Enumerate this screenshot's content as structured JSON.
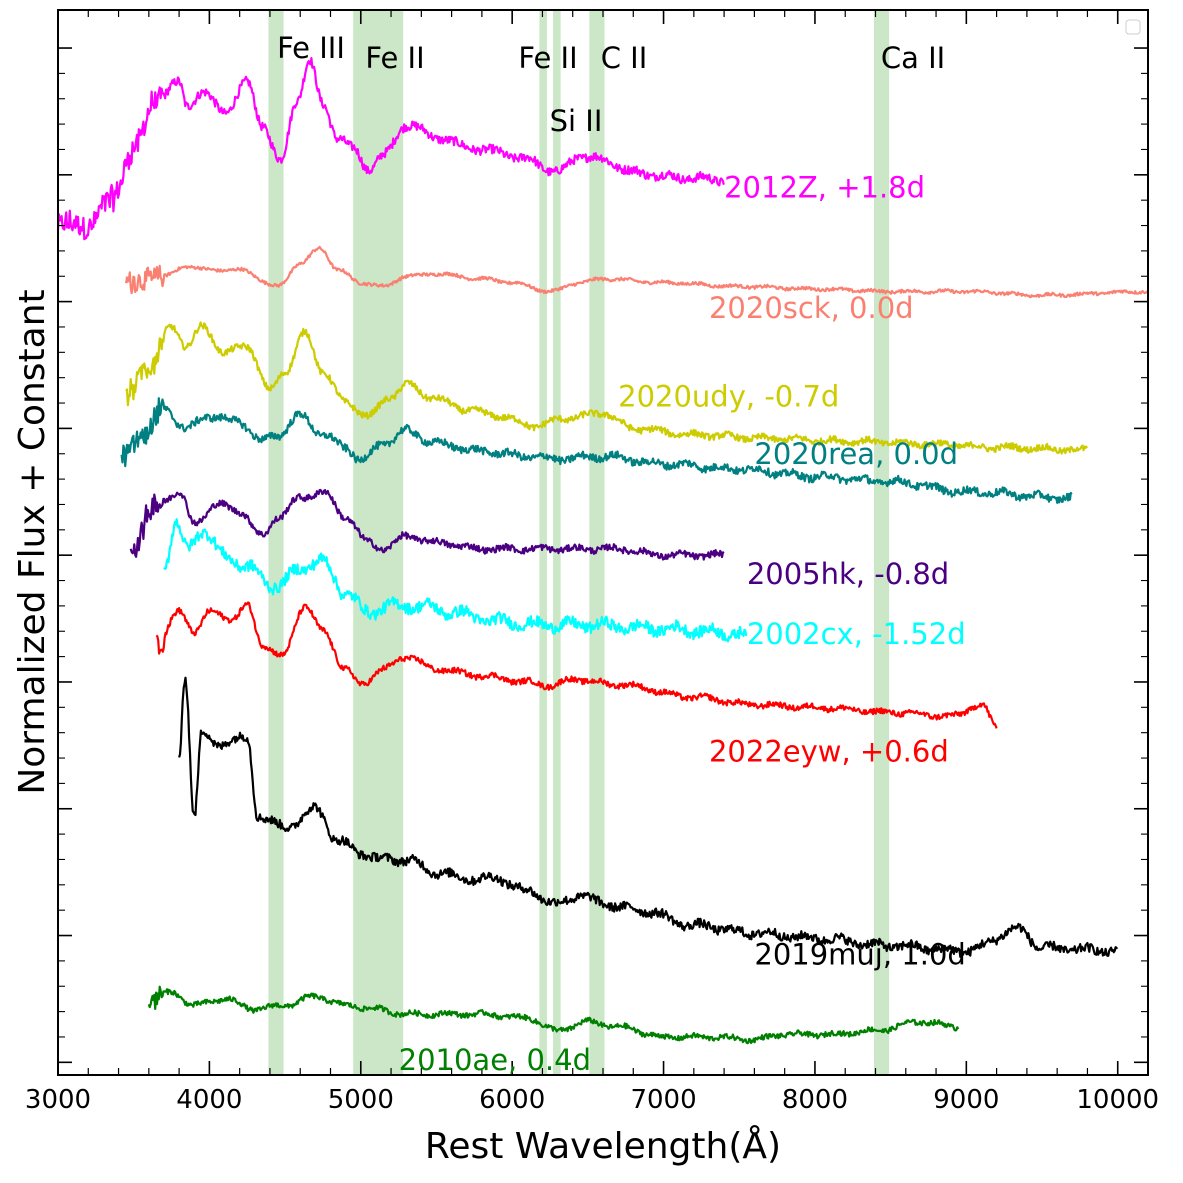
{
  "chart_data": {
    "type": "line",
    "xlabel": "Rest Wavelength(Å)",
    "ylabel": "Normalized Flux + Constant",
    "xlim": [
      3000,
      10200
    ],
    "ylim": [
      -0.1,
      8.3
    ],
    "x_ticks": [
      3000,
      4000,
      5000,
      6000,
      7000,
      8000,
      9000,
      10000
    ],
    "x_tick_labels": [
      "3000",
      "4000",
      "5000",
      "6000",
      "7000",
      "8000",
      "9000",
      "10000"
    ],
    "y_major_ticks": [
      0,
      1,
      2,
      3,
      4,
      5,
      6,
      7,
      8
    ],
    "grid": false,
    "legend": "top-right, empty",
    "line_bands": [
      {
        "label": "Fe III",
        "x": [
          4390,
          4490
        ]
      },
      {
        "label": "Fe II",
        "x": [
          4950,
          5280
        ]
      },
      {
        "label": "Fe II",
        "x": [
          6180,
          6230
        ]
      },
      {
        "label": "Si II",
        "x": [
          6270,
          6320
        ]
      },
      {
        "label": "C II",
        "x": [
          6510,
          6610
        ]
      },
      {
        "label": "Ca II",
        "x": [
          8390,
          8490
        ]
      }
    ],
    "band_color": "#b9dfb4",
    "series": [
      {
        "name": "2012Z, +1.8d",
        "color": "#ff00ff",
        "label_at": [
          7400,
          6.9
        ],
        "noise": 0.035,
        "points": [
          [
            3000,
            6.6
          ],
          [
            3200,
            6.6
          ],
          [
            3350,
            6.8
          ],
          [
            3500,
            7.2
          ],
          [
            3650,
            7.6
          ],
          [
            3800,
            7.72
          ],
          [
            3850,
            7.55
          ],
          [
            3950,
            7.65
          ],
          [
            4100,
            7.5
          ],
          [
            4250,
            7.72
          ],
          [
            4350,
            7.4
          ],
          [
            4470,
            7.1
          ],
          [
            4580,
            7.6
          ],
          [
            4660,
            7.9
          ],
          [
            4750,
            7.55
          ],
          [
            4850,
            7.3
          ],
          [
            4950,
            7.2
          ],
          [
            5050,
            7.05
          ],
          [
            5150,
            7.15
          ],
          [
            5300,
            7.4
          ],
          [
            5500,
            7.3
          ],
          [
            5700,
            7.22
          ],
          [
            5900,
            7.18
          ],
          [
            6100,
            7.12
          ],
          [
            6300,
            7.02
          ],
          [
            6450,
            7.15
          ],
          [
            6600,
            7.12
          ],
          [
            6800,
            7.02
          ],
          [
            7100,
            6.98
          ],
          [
            7400,
            6.96
          ]
        ]
      },
      {
        "name": "2020sck, 0.0d",
        "color": "#fa8072",
        "label_at": [
          7300,
          5.95
        ],
        "noise": 0.012,
        "points": [
          [
            3450,
            6.15
          ],
          [
            3700,
            6.2
          ],
          [
            3850,
            6.28
          ],
          [
            4000,
            6.25
          ],
          [
            4200,
            6.25
          ],
          [
            4450,
            6.12
          ],
          [
            4600,
            6.3
          ],
          [
            4730,
            6.42
          ],
          [
            4850,
            6.25
          ],
          [
            5000,
            6.15
          ],
          [
            5150,
            6.12
          ],
          [
            5300,
            6.2
          ],
          [
            5500,
            6.22
          ],
          [
            5800,
            6.18
          ],
          [
            6000,
            6.15
          ],
          [
            6250,
            6.08
          ],
          [
            6450,
            6.15
          ],
          [
            6600,
            6.18
          ],
          [
            7000,
            6.15
          ],
          [
            7500,
            6.12
          ],
          [
            8000,
            6.1
          ],
          [
            8500,
            6.08
          ],
          [
            9000,
            6.08
          ],
          [
            9500,
            6.05
          ],
          [
            10200,
            6.08
          ]
        ]
      },
      {
        "name": "2020udy, -0.7d",
        "color": "#cccc00",
        "label_at": [
          6700,
          5.25
        ],
        "noise": 0.025,
        "points": [
          [
            3450,
            5.25
          ],
          [
            3600,
            5.5
          ],
          [
            3750,
            5.8
          ],
          [
            3850,
            5.65
          ],
          [
            3950,
            5.8
          ],
          [
            4100,
            5.6
          ],
          [
            4250,
            5.65
          ],
          [
            4400,
            5.3
          ],
          [
            4500,
            5.45
          ],
          [
            4630,
            5.75
          ],
          [
            4750,
            5.45
          ],
          [
            4900,
            5.2
          ],
          [
            5050,
            5.1
          ],
          [
            5200,
            5.25
          ],
          [
            5300,
            5.35
          ],
          [
            5450,
            5.25
          ],
          [
            5700,
            5.15
          ],
          [
            5900,
            5.1
          ],
          [
            6150,
            5.02
          ],
          [
            6350,
            5.08
          ],
          [
            6600,
            5.12
          ],
          [
            6800,
            5.0
          ],
          [
            7200,
            4.95
          ],
          [
            7700,
            4.92
          ],
          [
            8200,
            4.9
          ],
          [
            8700,
            4.88
          ],
          [
            9200,
            4.85
          ],
          [
            9800,
            4.83
          ]
        ]
      },
      {
        "name": "2020rea, 0.0d",
        "color": "#008080",
        "label_at": [
          7600,
          4.8
        ],
        "noise": 0.03,
        "points": [
          [
            3420,
            4.75
          ],
          [
            3550,
            4.95
          ],
          [
            3700,
            5.15
          ],
          [
            3850,
            5.0
          ],
          [
            4000,
            5.1
          ],
          [
            4200,
            5.05
          ],
          [
            4350,
            4.9
          ],
          [
            4450,
            4.95
          ],
          [
            4600,
            5.1
          ],
          [
            4750,
            4.95
          ],
          [
            4900,
            4.85
          ],
          [
            5000,
            4.75
          ],
          [
            5150,
            4.88
          ],
          [
            5300,
            4.98
          ],
          [
            5500,
            4.88
          ],
          [
            5800,
            4.82
          ],
          [
            6100,
            4.78
          ],
          [
            6300,
            4.76
          ],
          [
            6600,
            4.78
          ],
          [
            7000,
            4.72
          ],
          [
            7500,
            4.68
          ],
          [
            8000,
            4.62
          ],
          [
            8500,
            4.58
          ],
          [
            9000,
            4.5
          ],
          [
            9700,
            4.45
          ]
        ]
      },
      {
        "name": "2005hk, -0.8d",
        "color": "#4b0082",
        "label_at": [
          7550,
          3.85
        ],
        "noise": 0.025,
        "points": [
          [
            3480,
            4.05
          ],
          [
            3650,
            4.4
          ],
          [
            3800,
            4.5
          ],
          [
            3900,
            4.25
          ],
          [
            4050,
            4.4
          ],
          [
            4200,
            4.35
          ],
          [
            4350,
            4.15
          ],
          [
            4450,
            4.3
          ],
          [
            4600,
            4.45
          ],
          [
            4750,
            4.5
          ],
          [
            4900,
            4.3
          ],
          [
            5050,
            4.1
          ],
          [
            5150,
            4.05
          ],
          [
            5300,
            4.15
          ],
          [
            5500,
            4.1
          ],
          [
            5800,
            4.05
          ],
          [
            6100,
            4.05
          ],
          [
            6400,
            4.05
          ],
          [
            6700,
            4.05
          ],
          [
            7000,
            4.0
          ],
          [
            7400,
            4.0
          ]
        ]
      },
      {
        "name": "2002cx, -1.52d",
        "color": "#00ffff",
        "label_at": [
          7550,
          3.38
        ],
        "noise": 0.045,
        "points": [
          [
            3700,
            3.9
          ],
          [
            3780,
            4.25
          ],
          [
            3850,
            4.05
          ],
          [
            3950,
            4.2
          ],
          [
            4100,
            4.0
          ],
          [
            4250,
            3.9
          ],
          [
            4450,
            3.75
          ],
          [
            4600,
            3.9
          ],
          [
            4750,
            3.95
          ],
          [
            4900,
            3.7
          ],
          [
            5050,
            3.55
          ],
          [
            5200,
            3.6
          ],
          [
            5400,
            3.6
          ],
          [
            5600,
            3.55
          ],
          [
            5900,
            3.48
          ],
          [
            6200,
            3.45
          ],
          [
            6500,
            3.45
          ],
          [
            7000,
            3.42
          ],
          [
            7550,
            3.38
          ]
        ]
      },
      {
        "name": "2022eyw, +0.6d",
        "color": "#ff0000",
        "label_at": [
          7300,
          2.45
        ],
        "noise": 0.022,
        "points": [
          [
            3650,
            3.3
          ],
          [
            3800,
            3.55
          ],
          [
            3900,
            3.4
          ],
          [
            4000,
            3.55
          ],
          [
            4150,
            3.5
          ],
          [
            4250,
            3.6
          ],
          [
            4350,
            3.3
          ],
          [
            4480,
            3.2
          ],
          [
            4630,
            3.6
          ],
          [
            4750,
            3.4
          ],
          [
            4900,
            3.1
          ],
          [
            5000,
            2.98
          ],
          [
            5150,
            3.1
          ],
          [
            5300,
            3.2
          ],
          [
            5500,
            3.1
          ],
          [
            5800,
            3.05
          ],
          [
            6100,
            3.0
          ],
          [
            6250,
            2.97
          ],
          [
            6400,
            3.02
          ],
          [
            6700,
            2.98
          ],
          [
            7200,
            2.88
          ],
          [
            7600,
            2.82
          ],
          [
            8000,
            2.8
          ],
          [
            8500,
            2.76
          ],
          [
            8900,
            2.73
          ],
          [
            9100,
            2.82
          ],
          [
            9200,
            2.65
          ]
        ]
      },
      {
        "name": "2019muj, 1.0d",
        "color": "#000000",
        "label_at": [
          7600,
          0.85
        ],
        "noise": 0.035,
        "points": [
          [
            3800,
            2.4
          ],
          [
            3840,
            3.05
          ],
          [
            3900,
            1.95
          ],
          [
            3950,
            2.6
          ],
          [
            4050,
            2.5
          ],
          [
            4150,
            2.55
          ],
          [
            4250,
            2.55
          ],
          [
            4320,
            1.95
          ],
          [
            4500,
            1.85
          ],
          [
            4700,
            2.0
          ],
          [
            4850,
            1.75
          ],
          [
            5000,
            1.65
          ],
          [
            5150,
            1.6
          ],
          [
            5300,
            1.6
          ],
          [
            5500,
            1.5
          ],
          [
            5700,
            1.45
          ],
          [
            5900,
            1.45
          ],
          [
            6100,
            1.35
          ],
          [
            6300,
            1.25
          ],
          [
            6450,
            1.32
          ],
          [
            6600,
            1.25
          ],
          [
            6850,
            1.2
          ],
          [
            7200,
            1.08
          ],
          [
            7600,
            1.02
          ],
          [
            8000,
            0.98
          ],
          [
            8500,
            0.92
          ],
          [
            9000,
            0.88
          ],
          [
            9350,
            1.05
          ],
          [
            9500,
            0.9
          ],
          [
            10000,
            0.88
          ]
        ]
      },
      {
        "name": "2010ae, 0.4d",
        "color": "#008000",
        "label_at": [
          5250,
          0.02
        ],
        "noise": 0.02,
        "points": [
          [
            3600,
            0.5
          ],
          [
            3750,
            0.55
          ],
          [
            3900,
            0.45
          ],
          [
            4100,
            0.5
          ],
          [
            4300,
            0.42
          ],
          [
            4500,
            0.45
          ],
          [
            4700,
            0.52
          ],
          [
            4900,
            0.45
          ],
          [
            5100,
            0.42
          ],
          [
            5300,
            0.38
          ],
          [
            5500,
            0.38
          ],
          [
            5800,
            0.38
          ],
          [
            6100,
            0.35
          ],
          [
            6300,
            0.25
          ],
          [
            6500,
            0.32
          ],
          [
            6700,
            0.28
          ],
          [
            7000,
            0.2
          ],
          [
            7300,
            0.2
          ],
          [
            7600,
            0.18
          ],
          [
            7800,
            0.22
          ],
          [
            8100,
            0.22
          ],
          [
            8400,
            0.25
          ],
          [
            8700,
            0.32
          ],
          [
            8950,
            0.28
          ]
        ]
      }
    ]
  }
}
